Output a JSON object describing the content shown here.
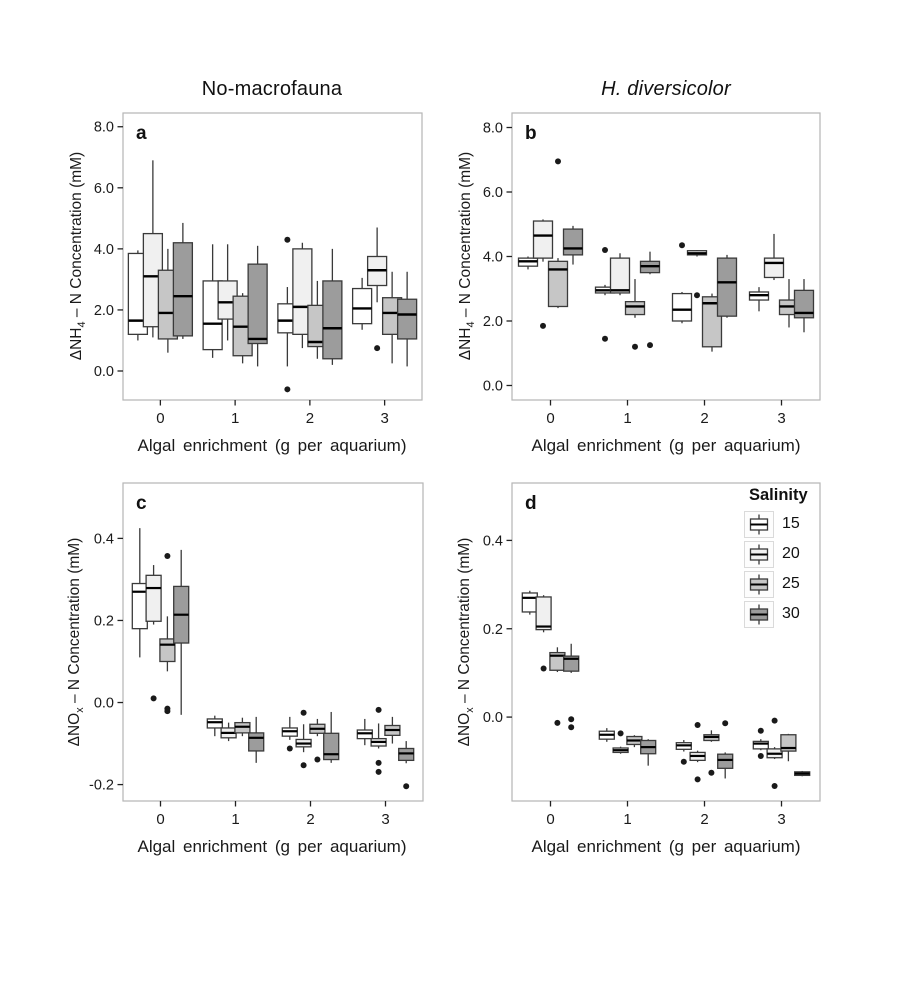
{
  "figure": {
    "background": "#ffffff",
    "col_titles": [
      {
        "text": "No-macrofauna",
        "italic": false
      },
      {
        "text": "H. diversicolor",
        "italic": true
      }
    ],
    "xlabel": "Algal enrichment (g per aquarium)",
    "legend": {
      "title": "Salinity",
      "entries": [
        {
          "label": "15",
          "fill": "#ffffff"
        },
        {
          "label": "20",
          "fill": "#f0f0f0"
        },
        {
          "label": "25",
          "fill": "#c6c6c6"
        },
        {
          "label": "30",
          "fill": "#9c9c9c"
        }
      ]
    },
    "style": {
      "box_stroke": "#3a3a3a",
      "median_color": "#000000",
      "outlier_color": "#1a1a1a",
      "panel_border": "#b5b5b5",
      "tick_color": "#222222",
      "text_color": "#1a1a1a"
    }
  },
  "chart_data": [
    {
      "type": "box",
      "panel": "a",
      "panel_label": "a",
      "title": "No-macrofauna",
      "ylabel_segments": [
        {
          "t": "ΔNH"
        },
        {
          "t": "4",
          "sub": true
        },
        {
          "t": " – N Concentration (mM)"
        }
      ],
      "xlabel": "Algal enrichment (g per aquarium)",
      "x_categories": [
        "0",
        "1",
        "2",
        "3"
      ],
      "ylim": [
        -0.95,
        8.45
      ],
      "yticks": [
        {
          "v": 0,
          "label": "0.0"
        },
        {
          "v": 2,
          "label": "2.0"
        },
        {
          "v": 4,
          "label": "4.0"
        },
        {
          "v": 6,
          "label": "6.0"
        },
        {
          "v": 8,
          "label": "8.0"
        }
      ],
      "series": [
        {
          "salinity": "15",
          "fill": "#ffffff",
          "boxes": [
            {
              "lo": 1.0,
              "q1": 1.2,
              "md": 1.65,
              "q3": 3.85,
              "hi": 3.95,
              "out": []
            },
            {
              "lo": 0.43,
              "q1": 0.7,
              "md": 1.55,
              "q3": 2.95,
              "hi": 4.15,
              "out": []
            },
            {
              "lo": 0.15,
              "q1": 1.25,
              "md": 1.65,
              "q3": 2.2,
              "hi": 2.75,
              "out": [
                4.3,
                -0.6
              ]
            },
            {
              "lo": 1.35,
              "q1": 1.55,
              "md": 2.05,
              "q3": 2.7,
              "hi": 3.05,
              "out": []
            }
          ]
        },
        {
          "salinity": "20",
          "fill": "#f0f0f0",
          "boxes": [
            {
              "lo": 1.1,
              "q1": 1.45,
              "md": 3.1,
              "q3": 4.5,
              "hi": 6.9,
              "out": []
            },
            {
              "lo": 1.0,
              "q1": 1.7,
              "md": 2.25,
              "q3": 2.95,
              "hi": 4.15,
              "out": []
            },
            {
              "lo": 0.75,
              "q1": 1.2,
              "md": 2.1,
              "q3": 4.0,
              "hi": 4.2,
              "out": []
            },
            {
              "lo": 2.25,
              "q1": 2.8,
              "md": 3.3,
              "q3": 3.75,
              "hi": 4.7,
              "out": [
                0.75
              ]
            }
          ]
        },
        {
          "salinity": "25",
          "fill": "#c6c6c6",
          "boxes": [
            {
              "lo": 0.6,
              "q1": 1.05,
              "md": 1.9,
              "q3": 3.3,
              "hi": 4.0,
              "out": []
            },
            {
              "lo": 0.25,
              "q1": 0.5,
              "md": 1.45,
              "q3": 2.45,
              "hi": 2.55,
              "out": []
            },
            {
              "lo": 0.4,
              "q1": 0.8,
              "md": 0.95,
              "q3": 2.15,
              "hi": 2.95,
              "out": []
            },
            {
              "lo": 0.25,
              "q1": 1.2,
              "md": 1.9,
              "q3": 2.4,
              "hi": 3.25,
              "out": []
            }
          ]
        },
        {
          "salinity": "30",
          "fill": "#9c9c9c",
          "boxes": [
            {
              "lo": 1.05,
              "q1": 1.15,
              "md": 2.45,
              "q3": 4.2,
              "hi": 4.85,
              "out": []
            },
            {
              "lo": 0.15,
              "q1": 0.9,
              "md": 1.05,
              "q3": 3.5,
              "hi": 4.1,
              "out": []
            },
            {
              "lo": 0.2,
              "q1": 0.4,
              "md": 1.4,
              "q3": 2.95,
              "hi": 4.0,
              "out": []
            },
            {
              "lo": 0.15,
              "q1": 1.05,
              "md": 1.85,
              "q3": 2.35,
              "hi": 3.25,
              "out": []
            }
          ]
        }
      ]
    },
    {
      "type": "box",
      "panel": "b",
      "panel_label": "b",
      "title": "H. diversicolor",
      "ylabel_segments": [
        {
          "t": "ΔNH"
        },
        {
          "t": "4",
          "sub": true
        },
        {
          "t": " – N Concentration (mM)"
        }
      ],
      "xlabel": "Algal enrichment (g per aquarium)",
      "x_categories": [
        "0",
        "1",
        "2",
        "3"
      ],
      "ylim": [
        -0.45,
        8.45
      ],
      "yticks": [
        {
          "v": 0,
          "label": "0.0"
        },
        {
          "v": 2,
          "label": "2.0"
        },
        {
          "v": 4,
          "label": "4.0"
        },
        {
          "v": 6,
          "label": "6.0"
        },
        {
          "v": 8,
          "label": "8.0"
        }
      ],
      "series": [
        {
          "salinity": "15",
          "fill": "#ffffff",
          "boxes": [
            {
              "lo": 3.6,
              "q1": 3.7,
              "md": 3.85,
              "q3": 3.95,
              "hi": 4.0,
              "out": []
            },
            {
              "lo": 2.8,
              "q1": 2.87,
              "md": 2.95,
              "q3": 3.05,
              "hi": 3.12,
              "out": [
                4.2,
                1.45
              ]
            },
            {
              "lo": 1.93,
              "q1": 2.0,
              "md": 2.35,
              "q3": 2.85,
              "hi": 2.9,
              "out": [
                4.35
              ]
            },
            {
              "lo": 2.3,
              "q1": 2.65,
              "md": 2.8,
              "q3": 2.9,
              "hi": 3.05,
              "out": []
            }
          ]
        },
        {
          "salinity": "20",
          "fill": "#f0f0f0",
          "boxes": [
            {
              "lo": 3.84,
              "q1": 3.95,
              "md": 4.65,
              "q3": 5.1,
              "hi": 5.15,
              "out": [
                1.85
              ]
            },
            {
              "lo": 2.8,
              "q1": 2.87,
              "md": 2.95,
              "q3": 3.95,
              "hi": 4.1,
              "out": []
            },
            {
              "lo": 4.0,
              "q1": 4.05,
              "md": 4.1,
              "q3": 4.18,
              "hi": 4.2,
              "out": [
                2.8
              ]
            },
            {
              "lo": 3.27,
              "q1": 3.35,
              "md": 3.8,
              "q3": 3.95,
              "hi": 4.7,
              "out": []
            }
          ]
        },
        {
          "salinity": "25",
          "fill": "#c6c6c6",
          "boxes": [
            {
              "lo": 2.4,
              "q1": 2.45,
              "md": 3.6,
              "q3": 3.85,
              "hi": 3.95,
              "out": [
                6.95
              ]
            },
            {
              "lo": 2.1,
              "q1": 2.2,
              "md": 2.45,
              "q3": 2.6,
              "hi": 3.3,
              "out": [
                1.2
              ]
            },
            {
              "lo": 1.05,
              "q1": 1.2,
              "md": 2.55,
              "q3": 2.75,
              "hi": 2.85,
              "out": []
            },
            {
              "lo": 1.8,
              "q1": 2.2,
              "md": 2.45,
              "q3": 2.65,
              "hi": 3.3,
              "out": []
            }
          ]
        },
        {
          "salinity": "30",
          "fill": "#9c9c9c",
          "boxes": [
            {
              "lo": 3.75,
              "q1": 4.05,
              "md": 4.25,
              "q3": 4.85,
              "hi": 4.95,
              "out": []
            },
            {
              "lo": 3.45,
              "q1": 3.5,
              "md": 3.7,
              "q3": 3.85,
              "hi": 4.15,
              "out": [
                1.25
              ]
            },
            {
              "lo": 2.1,
              "q1": 2.15,
              "md": 3.2,
              "q3": 3.95,
              "hi": 4.05,
              "out": []
            },
            {
              "lo": 1.65,
              "q1": 2.1,
              "md": 2.25,
              "q3": 2.95,
              "hi": 3.3,
              "out": []
            }
          ]
        }
      ]
    },
    {
      "type": "box",
      "panel": "c",
      "panel_label": "c",
      "title": "No-macrofauna",
      "ylabel_segments": [
        {
          "t": "ΔNO"
        },
        {
          "t": "x",
          "sub": true
        },
        {
          "t": " – N Concentration (mM)"
        }
      ],
      "xlabel": "Algal enrichment (g per aquarium)",
      "x_categories": [
        "0",
        "1",
        "2",
        "3"
      ],
      "ylim": [
        -0.24,
        0.535
      ],
      "yticks": [
        {
          "v": -0.2,
          "label": "-0.2"
        },
        {
          "v": 0,
          "label": "0.0"
        },
        {
          "v": 0.2,
          "label": "0.2"
        },
        {
          "v": 0.4,
          "label": "0.4"
        }
      ],
      "series": [
        {
          "salinity": "15",
          "fill": "#ffffff",
          "boxes": [
            {
              "lo": 0.11,
              "q1": 0.18,
              "md": 0.27,
              "q3": 0.29,
              "hi": 0.425,
              "out": []
            },
            {
              "lo": -0.082,
              "q1": -0.062,
              "md": -0.048,
              "q3": -0.04,
              "hi": -0.032,
              "out": []
            },
            {
              "lo": -0.091,
              "q1": -0.082,
              "md": -0.07,
              "q3": -0.062,
              "hi": -0.035,
              "out": [
                -0.112
              ]
            },
            {
              "lo": -0.104,
              "q1": -0.088,
              "md": -0.075,
              "q3": -0.067,
              "hi": -0.04,
              "out": []
            }
          ]
        },
        {
          "salinity": "20",
          "fill": "#f0f0f0",
          "boxes": [
            {
              "lo": 0.19,
              "q1": 0.198,
              "md": 0.279,
              "q3": 0.31,
              "hi": 0.335,
              "out": [
                0.01
              ]
            },
            {
              "lo": -0.094,
              "q1": -0.086,
              "md": -0.074,
              "q3": -0.062,
              "hi": -0.049,
              "out": []
            },
            {
              "lo": -0.121,
              "q1": -0.108,
              "md": -0.1,
              "q3": -0.09,
              "hi": -0.053,
              "out": [
                -0.025,
                -0.153
              ]
            },
            {
              "lo": -0.112,
              "q1": -0.106,
              "md": -0.096,
              "q3": -0.088,
              "hi": -0.051,
              "out": [
                -0.018,
                -0.147,
                -0.169
              ]
            }
          ]
        },
        {
          "salinity": "25",
          "fill": "#c6c6c6",
          "boxes": [
            {
              "lo": 0.076,
              "q1": 0.1,
              "md": 0.141,
              "q3": 0.155,
              "hi": 0.21,
              "out": [
                0.357,
                -0.015,
                -0.021
              ]
            },
            {
              "lo": -0.082,
              "q1": -0.074,
              "md": -0.059,
              "q3": -0.049,
              "hi": -0.037,
              "out": []
            },
            {
              "lo": -0.082,
              "q1": -0.075,
              "md": -0.064,
              "q3": -0.053,
              "hi": -0.04,
              "out": [
                -0.139
              ]
            },
            {
              "lo": -0.1,
              "q1": -0.08,
              "md": -0.067,
              "q3": -0.056,
              "hi": -0.035,
              "out": []
            }
          ]
        },
        {
          "salinity": "30",
          "fill": "#9c9c9c",
          "boxes": [
            {
              "lo": -0.03,
              "q1": 0.145,
              "md": 0.214,
              "q3": 0.283,
              "hi": 0.372,
              "out": []
            },
            {
              "lo": -0.147,
              "q1": -0.118,
              "md": -0.086,
              "q3": -0.074,
              "hi": -0.035,
              "out": []
            },
            {
              "lo": -0.147,
              "q1": -0.139,
              "md": -0.126,
              "q3": -0.075,
              "hi": -0.023,
              "out": []
            },
            {
              "lo": -0.148,
              "q1": -0.141,
              "md": -0.124,
              "q3": -0.112,
              "hi": -0.094,
              "out": [
                -0.204
              ]
            }
          ]
        }
      ]
    },
    {
      "type": "box",
      "panel": "d",
      "panel_label": "d",
      "title": "H. diversicolor",
      "ylabel_segments": [
        {
          "t": "ΔNO"
        },
        {
          "t": "x",
          "sub": true
        },
        {
          "t": " – N Concentration (mM)"
        }
      ],
      "xlabel": "Algal enrichment (g per aquarium)",
      "x_categories": [
        "0",
        "1",
        "2",
        "3"
      ],
      "ylim": [
        -0.19,
        0.53
      ],
      "yticks": [
        {
          "v": 0,
          "label": "0.0"
        },
        {
          "v": 0.2,
          "label": "0.2"
        },
        {
          "v": 0.4,
          "label": "0.4"
        }
      ],
      "series": [
        {
          "salinity": "15",
          "fill": "#ffffff",
          "boxes": [
            {
              "lo": 0.232,
              "q1": 0.238,
              "md": 0.27,
              "q3": 0.281,
              "hi": 0.286,
              "out": []
            },
            {
              "lo": -0.056,
              "q1": -0.05,
              "md": -0.04,
              "q3": -0.032,
              "hi": -0.025,
              "out": []
            },
            {
              "lo": -0.078,
              "q1": -0.073,
              "md": -0.064,
              "q3": -0.058,
              "hi": -0.052,
              "out": [
                -0.101
              ]
            },
            {
              "lo": -0.075,
              "q1": -0.072,
              "md": -0.06,
              "q3": -0.055,
              "hi": -0.05,
              "out": [
                -0.031,
                -0.088
              ]
            }
          ]
        },
        {
          "salinity": "20",
          "fill": "#f0f0f0",
          "boxes": [
            {
              "lo": 0.192,
              "q1": 0.198,
              "md": 0.205,
              "q3": 0.272,
              "hi": 0.276,
              "out": [
                0.11
              ]
            },
            {
              "lo": -0.083,
              "q1": -0.08,
              "md": -0.075,
              "q3": -0.07,
              "hi": -0.067,
              "out": [
                -0.037
              ]
            },
            {
              "lo": -0.102,
              "q1": -0.098,
              "md": -0.088,
              "q3": -0.08,
              "hi": -0.076,
              "out": [
                -0.018,
                -0.141
              ]
            },
            {
              "lo": -0.095,
              "q1": -0.092,
              "md": -0.083,
              "q3": -0.072,
              "hi": -0.068,
              "out": [
                -0.008,
                -0.156
              ]
            }
          ]
        },
        {
          "salinity": "25",
          "fill": "#c6c6c6",
          "boxes": [
            {
              "lo": 0.102,
              "q1": 0.106,
              "md": 0.139,
              "q3": 0.146,
              "hi": 0.158,
              "out": [
                -0.013
              ]
            },
            {
              "lo": -0.068,
              "q1": -0.062,
              "md": -0.053,
              "q3": -0.044,
              "hi": -0.041,
              "out": []
            },
            {
              "lo": -0.056,
              "q1": -0.053,
              "md": -0.045,
              "q3": -0.04,
              "hi": -0.03,
              "out": [
                -0.126
              ]
            },
            {
              "lo": -0.1,
              "q1": -0.077,
              "md": -0.07,
              "q3": -0.04,
              "hi": -0.038,
              "out": []
            }
          ]
        },
        {
          "salinity": "30",
          "fill": "#9c9c9c",
          "boxes": [
            {
              "lo": 0.1,
              "q1": 0.104,
              "md": 0.132,
              "q3": 0.138,
              "hi": 0.166,
              "out": [
                -0.005,
                -0.023
              ]
            },
            {
              "lo": -0.11,
              "q1": -0.083,
              "md": -0.068,
              "q3": -0.053,
              "hi": -0.05,
              "out": []
            },
            {
              "lo": -0.139,
              "q1": -0.116,
              "md": -0.097,
              "q3": -0.084,
              "hi": -0.08,
              "out": [
                -0.014
              ]
            },
            {
              "lo": -0.134,
              "q1": -0.132,
              "md": -0.128,
              "q3": -0.124,
              "hi": -0.122,
              "out": []
            }
          ]
        }
      ]
    }
  ]
}
